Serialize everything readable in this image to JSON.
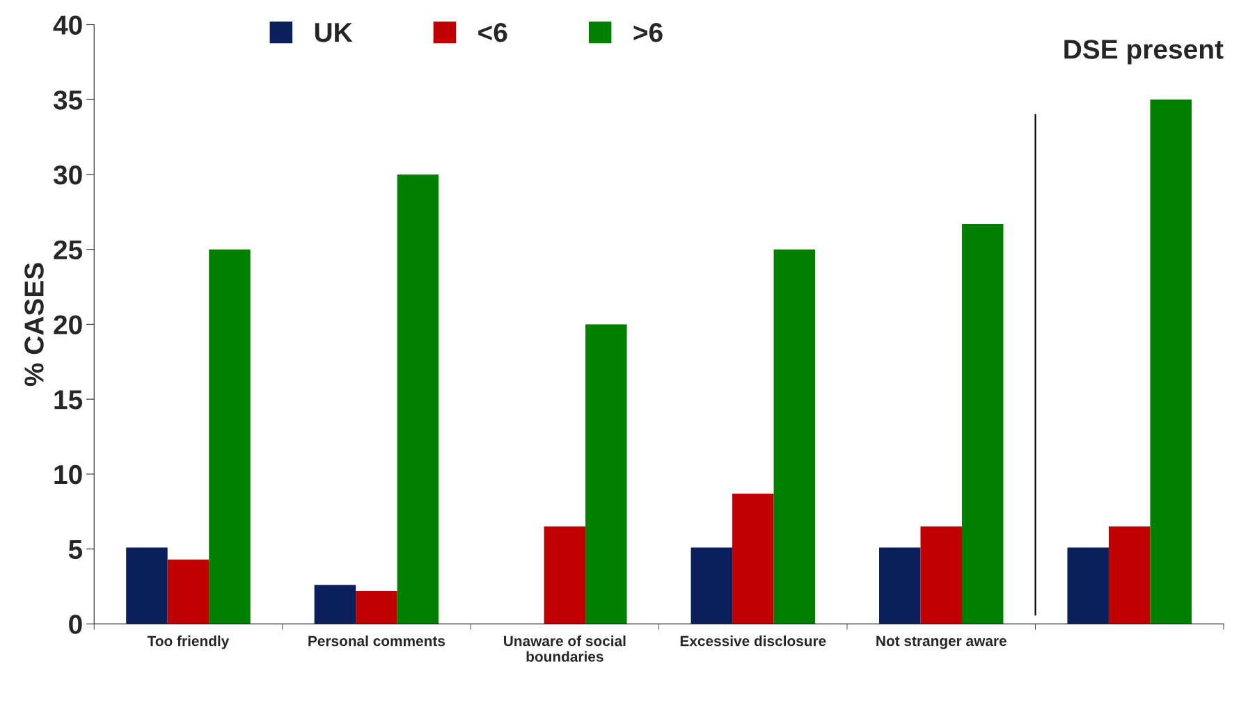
{
  "chart_data": {
    "type": "bar",
    "ylabel": "% CASES",
    "categories": [
      "Too friendly",
      "Personal comments",
      "Unaware of social\nboundaries",
      "Excessive disclosure",
      "Not stranger aware",
      null
    ],
    "series": [
      {
        "name": "UK",
        "color": "#0a1f5c",
        "values": [
          5.1,
          2.6,
          0,
          5.1,
          5.1,
          5.1
        ]
      },
      {
        "name": "<6",
        "color": "#c00000",
        "values": [
          4.3,
          2.2,
          6.5,
          8.7,
          6.5,
          6.5
        ]
      },
      {
        "name": ">6",
        "color": "#008000",
        "values": [
          25,
          30,
          20,
          25,
          26.7,
          35
        ]
      }
    ],
    "ylim": [
      0,
      40
    ],
    "yticks": [
      0,
      5,
      10,
      15,
      20,
      25,
      30,
      35,
      40
    ],
    "annotations": [
      "DSE present"
    ],
    "grid": false,
    "legend": "top"
  }
}
